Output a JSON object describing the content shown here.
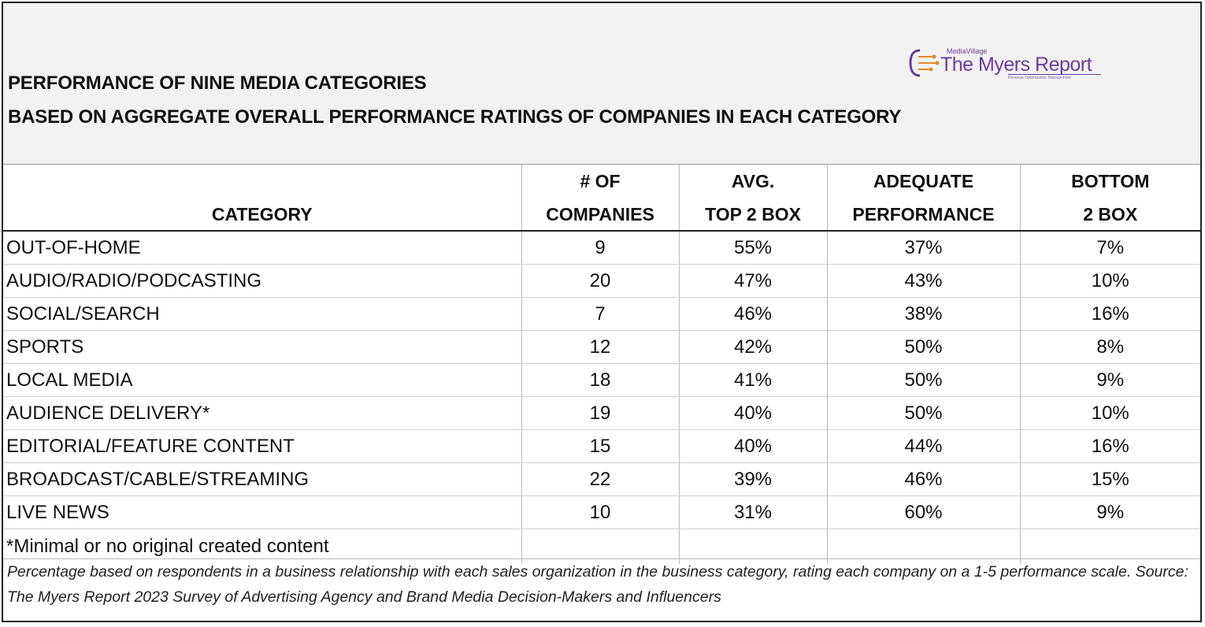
{
  "title_line1": "PERFORMANCE OF NINE MEDIA CATEGORIES",
  "title_line2": "BASED ON AGGREGATE OVERALL PERFORMANCE RATINGS OF COMPANIES IN EACH CATEGORY",
  "logo": {
    "small": "MediaVillage",
    "main": "The Myers Report",
    "sub": "Revenue Optimization Management"
  },
  "chart_data": {
    "type": "table",
    "columns": [
      {
        "line1": "",
        "line2": "CATEGORY"
      },
      {
        "line1": "# OF",
        "line2": "COMPANIES"
      },
      {
        "line1": "AVG.",
        "line2": "TOP 2 BOX"
      },
      {
        "line1": "ADEQUATE",
        "line2": "PERFORMANCE"
      },
      {
        "line1": "BOTTOM",
        "line2": "2 BOX"
      }
    ],
    "rows": [
      [
        "OUT-OF-HOME",
        "9",
        "55%",
        "37%",
        "7%"
      ],
      [
        "AUDIO/RADIO/PODCASTING",
        "20",
        "47%",
        "43%",
        "10%"
      ],
      [
        "SOCIAL/SEARCH",
        "7",
        "46%",
        "38%",
        "16%"
      ],
      [
        "SPORTS",
        "12",
        "42%",
        "50%",
        "8%"
      ],
      [
        "LOCAL MEDIA",
        "18",
        "41%",
        "50%",
        "9%"
      ],
      [
        "AUDIENCE DELIVERY*",
        "19",
        "40%",
        "50%",
        "10%"
      ],
      [
        "EDITORIAL/FEATURE CONTENT",
        "15",
        "40%",
        "44%",
        "16%"
      ],
      [
        "BROADCAST/CABLE/STREAMING",
        "22",
        "39%",
        "46%",
        "15%"
      ],
      [
        "LIVE NEWS",
        "10",
        "31%",
        "60%",
        "9%"
      ]
    ]
  },
  "footnote": "*Minimal or no original created content",
  "source": "Percentage based on respondents in a business relationship with each sales organization in the business category, rating each company on a 1-5 performance scale. Source: The Myers Report 2023 Survey of Advertising Agency and Brand Media Decision-Makers and Influencers",
  "colors": {
    "header_bg": "#f2f2f2",
    "logo": "#6a3d9a"
  }
}
